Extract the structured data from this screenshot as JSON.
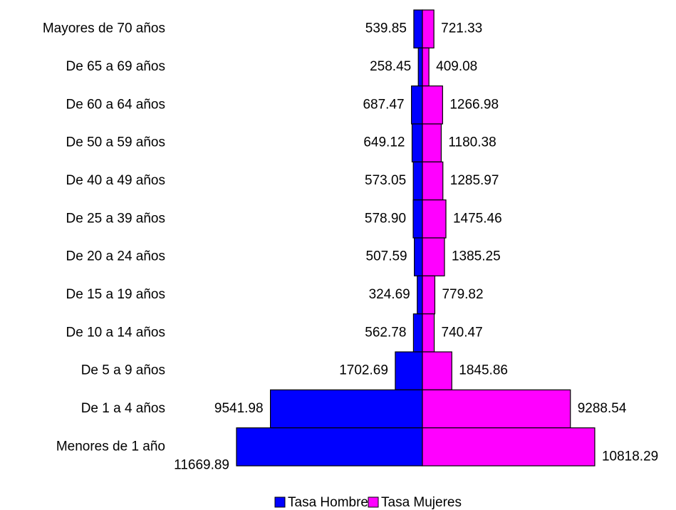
{
  "chart_data": {
    "type": "pyramid",
    "categories": [
      "Mayores de 70 años",
      "De 65 a 69 años",
      "De 60 a 64 años",
      "De 50 a 59 años",
      "De 40 a 49 años",
      "De 25 a 39 años",
      "De 20 a 24 años",
      "De 15 a 19 años",
      "De 10 a 14 años",
      "De 5 a 9 años",
      "De 1 a 4 años",
      "Menores de 1 año"
    ],
    "series": [
      {
        "name": "Tasa Hombres",
        "color": "#0000ff",
        "values": [
          539.85,
          258.45,
          687.47,
          649.12,
          573.05,
          578.9,
          507.59,
          324.69,
          562.78,
          1702.69,
          9541.98,
          11669.89
        ],
        "value_labels": [
          "539.85",
          "258.45",
          "687.47",
          "649.12",
          "573.05",
          "578.90",
          "507.59",
          "324.69",
          "562.78",
          "1702.69",
          "9541.98",
          "11669.89"
        ]
      },
      {
        "name": "Tasa Mujeres",
        "color": "#ff00ff",
        "values": [
          721.33,
          409.08,
          1266.98,
          1180.38,
          1285.97,
          1475.46,
          1385.25,
          779.82,
          740.47,
          1845.86,
          9288.54,
          10818.29
        ],
        "value_labels": [
          "721.33",
          "409.08",
          "1266.98",
          "1180.38",
          "1285.97",
          "1475.46",
          "1385.25",
          "779.82",
          "740.47",
          "1845.86",
          "9288.54",
          "10818.29"
        ]
      }
    ],
    "legend": "bottom"
  }
}
